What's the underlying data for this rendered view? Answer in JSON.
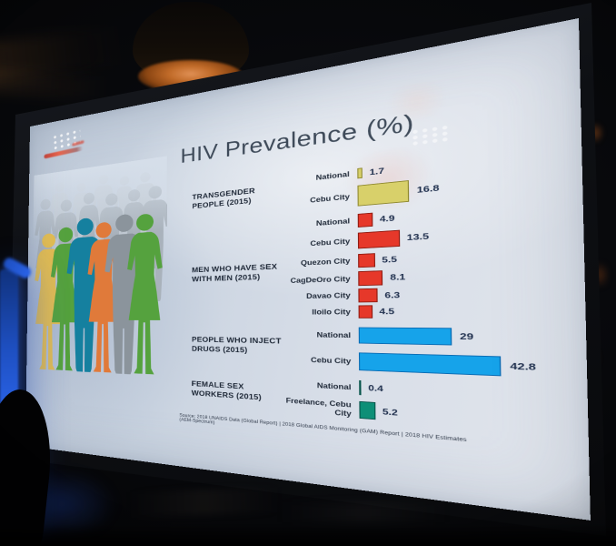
{
  "slide": {
    "title": "HIV Prevalence (%)",
    "source": "Source: 2018 UNAIDS Data (Global Report) | 2018 Global AIDS Monitoring (GAM) Report | 2018 HIV Estimates (AEM-Spectrum)"
  },
  "chart_data": {
    "type": "bar",
    "orientation": "horizontal",
    "title": "HIV Prevalence (%)",
    "unit": "%",
    "xlim": [
      0,
      45
    ],
    "grid": false,
    "groups": [
      {
        "label": "TRANSGENDER PEOPLE (2015)",
        "color": "#d8d06a",
        "border": "#8f892f",
        "bars": [
          {
            "label": "National",
            "value": 1.7
          },
          {
            "label": "Cebu City",
            "value": 16.8
          }
        ]
      },
      {
        "label": "MEN WHO HAVE SEX WITH MEN (2015)",
        "color": "#e6382a",
        "border": "#8f1a10",
        "bars": [
          {
            "label": "National",
            "value": 4.9
          },
          {
            "label": "Cebu City",
            "value": 13.5
          },
          {
            "label": "Quezon City",
            "value": 5.5
          },
          {
            "label": "CagDeOro City",
            "value": 8.1
          },
          {
            "label": "Davao City",
            "value": 6.3
          },
          {
            "label": "Iloilo City",
            "value": 4.5
          }
        ]
      },
      {
        "label": "PEOPLE WHO INJECT DRUGS (2015)",
        "color": "#16a3ea",
        "border": "#0a6cb4",
        "bars": [
          {
            "label": "National",
            "value": 29
          },
          {
            "label": "Cebu City",
            "value": 42.8
          }
        ]
      },
      {
        "label": "FEMALE SEX WORKERS (2015)",
        "color": "#0e8f77",
        "border": "#07544a",
        "bars": [
          {
            "label": "National",
            "value": 0.4
          },
          {
            "label": "Freelance, Cebu City",
            "value": 5.2
          }
        ]
      }
    ]
  },
  "palette": {
    "title_text": "#3e4a59",
    "slide_text": "#1d2736",
    "value_text": "#20304e",
    "figure_yellow": "#e3bd52",
    "figure_green": "#55a23e",
    "figure_teal": "#15809f",
    "figure_orange": "#e07a3a",
    "figure_gray": "#8b949c",
    "figure_back_gray": "#a7b0b9",
    "figure_far_gray": "#bfc6ce",
    "lamp_glow": "#c06a28",
    "blue_light": "#2a63e8"
  }
}
